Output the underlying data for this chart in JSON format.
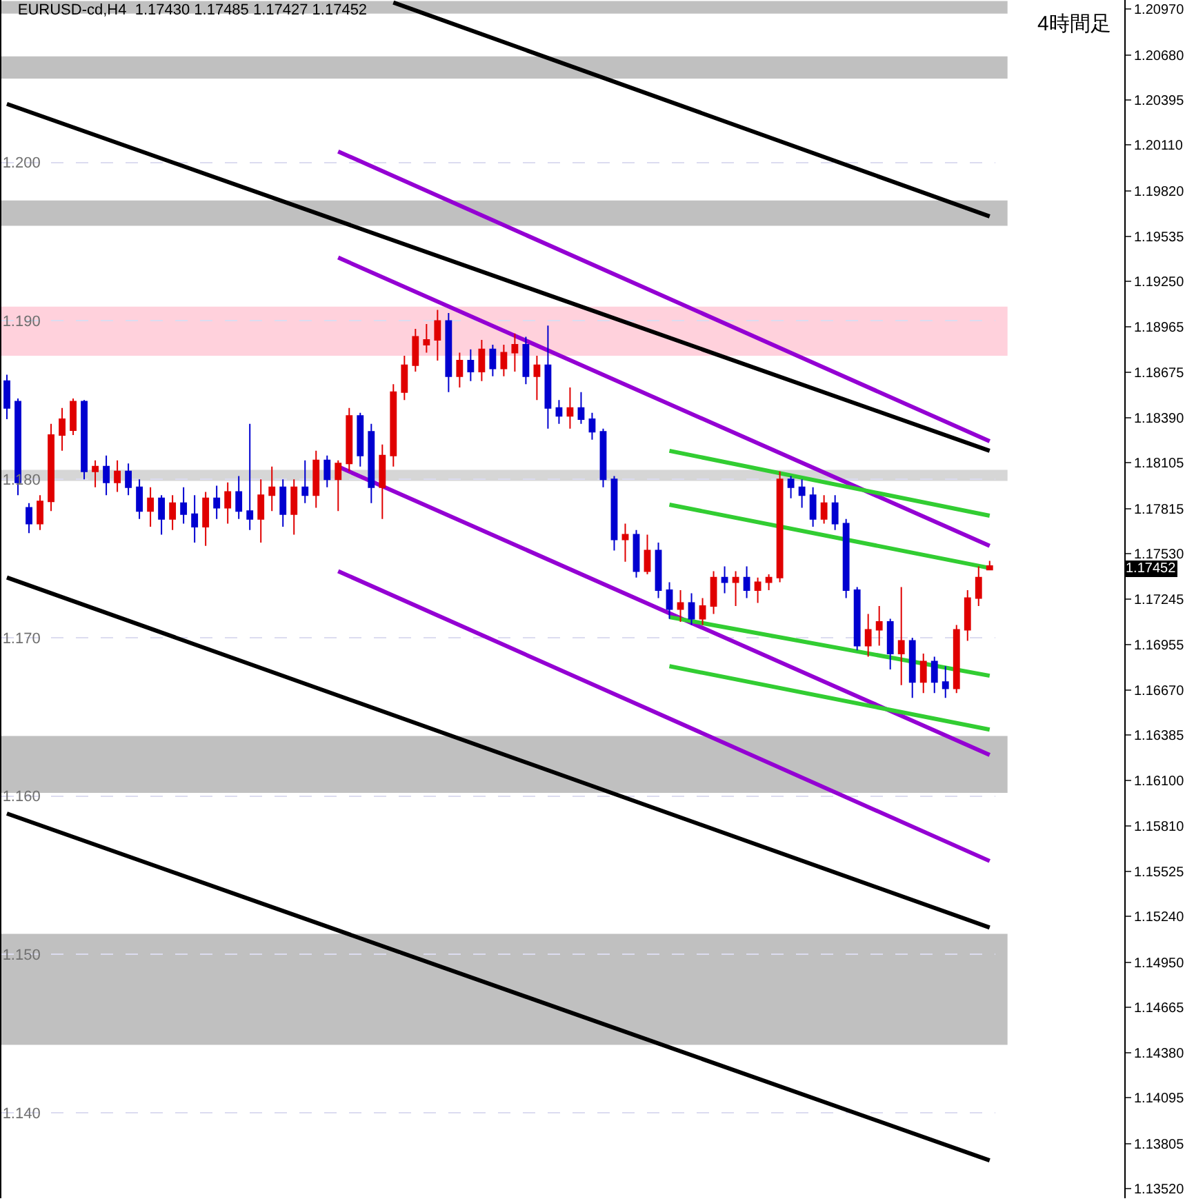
{
  "chart_data": {
    "type": "candlestick",
    "title": "EURUSD-cd,H4  1.17430 1.17485 1.17427 1.17452",
    "categories": [
      null,
      null,
      null,
      null,
      null,
      null,
      null,
      null,
      null,
      null,
      null,
      null,
      null,
      null,
      null,
      null,
      null,
      null,
      null,
      null,
      null,
      null,
      null,
      null,
      null,
      null,
      null,
      null,
      null,
      null,
      null,
      null,
      null,
      null,
      null,
      null,
      null,
      null,
      null,
      null,
      null,
      null,
      null,
      null,
      null,
      null,
      null,
      null,
      null,
      null,
      null,
      null,
      null,
      null,
      null,
      null,
      null,
      null,
      null,
      null,
      null,
      null,
      null,
      null,
      null,
      null,
      null,
      null,
      null,
      null,
      null,
      null,
      null,
      null,
      null,
      null,
      null,
      null,
      null,
      null,
      null,
      null,
      null,
      null,
      null,
      null,
      null,
      null,
      null,
      null
    ],
    "ohlc": [
      [
        1.1862,
        1.1866,
        1.1838,
        1.1845
      ],
      [
        1.1849,
        1.1851,
        1.179,
        1.1798
      ],
      [
        1.1782,
        1.1785,
        1.1766,
        1.1772
      ],
      [
        1.1772,
        1.179,
        1.1768,
        1.1786
      ],
      [
        1.1786,
        1.1835,
        1.178,
        1.1828
      ],
      [
        1.1828,
        1.1845,
        1.1818,
        1.1838
      ],
      [
        1.1831,
        1.1851,
        1.1828,
        1.1849
      ],
      [
        1.1849,
        1.185,
        1.18,
        1.1805
      ],
      [
        1.1805,
        1.1812,
        1.1795,
        1.1808
      ],
      [
        1.1808,
        1.1815,
        1.179,
        1.1798
      ],
      [
        1.1798,
        1.1812,
        1.1792,
        1.1805
      ],
      [
        1.1805,
        1.181,
        1.179,
        1.1795
      ],
      [
        1.1795,
        1.18,
        1.1775,
        1.178
      ],
      [
        1.178,
        1.1795,
        1.177,
        1.1788
      ],
      [
        1.1788,
        1.179,
        1.1765,
        1.1775
      ],
      [
        1.1775,
        1.179,
        1.1768,
        1.1785
      ],
      [
        1.1785,
        1.1795,
        1.1772,
        1.1778
      ],
      [
        1.1778,
        1.179,
        1.176,
        1.177
      ],
      [
        1.177,
        1.1792,
        1.1758,
        1.1788
      ],
      [
        1.1788,
        1.1796,
        1.1775,
        1.1782
      ],
      [
        1.1782,
        1.1798,
        1.1772,
        1.1792
      ],
      [
        1.1792,
        1.1802,
        1.1775,
        1.178
      ],
      [
        1.178,
        1.1835,
        1.1768,
        1.1775
      ],
      [
        1.1775,
        1.18,
        1.176,
        1.179
      ],
      [
        1.179,
        1.1808,
        1.178,
        1.1795
      ],
      [
        1.1795,
        1.18,
        1.177,
        1.1778
      ],
      [
        1.1778,
        1.18,
        1.1765,
        1.1795
      ],
      [
        1.1795,
        1.1812,
        1.1785,
        1.179
      ],
      [
        1.179,
        1.1818,
        1.1782,
        1.1812
      ],
      [
        1.1812,
        1.1815,
        1.1795,
        1.18
      ],
      [
        1.18,
        1.1812,
        1.178,
        1.181
      ],
      [
        1.181,
        1.1845,
        1.1805,
        1.184
      ],
      [
        1.184,
        1.1842,
        1.1808,
        1.1815
      ],
      [
        1.183,
        1.1835,
        1.1785,
        1.1795
      ],
      [
        1.1795,
        1.1822,
        1.1775,
        1.1815
      ],
      [
        1.1815,
        1.186,
        1.1808,
        1.1855
      ],
      [
        1.1855,
        1.1878,
        1.185,
        1.1872
      ],
      [
        1.1872,
        1.1895,
        1.1868,
        1.189
      ],
      [
        1.1885,
        1.1898,
        1.188,
        1.1888
      ],
      [
        1.1888,
        1.1907,
        1.1875,
        1.19
      ],
      [
        1.19,
        1.1905,
        1.1855,
        1.1865
      ],
      [
        1.1865,
        1.188,
        1.1858,
        1.1875
      ],
      [
        1.1875,
        1.1882,
        1.1862,
        1.1868
      ],
      [
        1.1868,
        1.1888,
        1.1862,
        1.1882
      ],
      [
        1.1882,
        1.1885,
        1.1865,
        1.187
      ],
      [
        1.187,
        1.1885,
        1.1865,
        1.188
      ],
      [
        1.188,
        1.1892,
        1.1868,
        1.1885
      ],
      [
        1.1885,
        1.189,
        1.186,
        1.1865
      ],
      [
        1.1865,
        1.1878,
        1.185,
        1.1872
      ],
      [
        1.1872,
        1.1897,
        1.1832,
        1.1845
      ],
      [
        1.1845,
        1.185,
        1.1835,
        1.184
      ],
      [
        1.184,
        1.1858,
        1.1832,
        1.1845
      ],
      [
        1.1845,
        1.1855,
        1.1835,
        1.1838
      ],
      [
        1.1838,
        1.1842,
        1.1825,
        1.183
      ],
      [
        1.183,
        1.1832,
        1.1795,
        1.18
      ],
      [
        1.18,
        1.1802,
        1.1755,
        1.1762
      ],
      [
        1.1762,
        1.1772,
        1.1748,
        1.1765
      ],
      [
        1.1765,
        1.1768,
        1.1738,
        1.1742
      ],
      [
        1.1742,
        1.1765,
        1.174,
        1.1755
      ],
      [
        1.1755,
        1.176,
        1.1725,
        1.173
      ],
      [
        1.173,
        1.1735,
        1.1712,
        1.1718
      ],
      [
        1.1718,
        1.173,
        1.171,
        1.1722
      ],
      [
        1.1722,
        1.1728,
        1.1708,
        1.1712
      ],
      [
        1.1712,
        1.1725,
        1.1708,
        1.172
      ],
      [
        1.172,
        1.1742,
        1.1715,
        1.1738
      ],
      [
        1.1738,
        1.1745,
        1.1728,
        1.1735
      ],
      [
        1.1735,
        1.1742,
        1.172,
        1.1738
      ],
      [
        1.1738,
        1.1745,
        1.1725,
        1.173
      ],
      [
        1.173,
        1.1738,
        1.1722,
        1.1735
      ],
      [
        1.1735,
        1.174,
        1.173,
        1.1738
      ],
      [
        1.1738,
        1.1805,
        1.1735,
        1.18
      ],
      [
        1.18,
        1.1802,
        1.1788,
        1.1795
      ],
      [
        1.1795,
        1.18,
        1.1782,
        1.179
      ],
      [
        1.179,
        1.1795,
        1.177,
        1.1775
      ],
      [
        1.1775,
        1.179,
        1.1772,
        1.1785
      ],
      [
        1.1785,
        1.179,
        1.1768,
        1.1772
      ],
      [
        1.1772,
        1.1775,
        1.1725,
        1.173
      ],
      [
        1.173,
        1.1732,
        1.1692,
        1.1695
      ],
      [
        1.1695,
        1.1715,
        1.1688,
        1.1705
      ],
      [
        1.1705,
        1.172,
        1.1695,
        1.171
      ],
      [
        1.171,
        1.1712,
        1.168,
        1.169
      ],
      [
        1.169,
        1.1732,
        1.167,
        1.1698
      ],
      [
        1.1698,
        1.17,
        1.1662,
        1.1672
      ],
      [
        1.1672,
        1.169,
        1.1665,
        1.1685
      ],
      [
        1.1685,
        1.1688,
        1.1665,
        1.1672
      ],
      [
        1.1672,
        1.1682,
        1.1662,
        1.1668
      ],
      [
        1.1668,
        1.1708,
        1.1665,
        1.1705
      ],
      [
        1.1705,
        1.173,
        1.1698,
        1.1725
      ],
      [
        1.1725,
        1.1745,
        1.172,
        1.1738
      ],
      [
        1.1743,
        1.17485,
        1.17427,
        1.17452
      ]
    ],
    "colors": [
      "#0000d0",
      "#0000d0",
      "#0000d0",
      "#e00000",
      "#e00000",
      "#e00000",
      "#e00000",
      "#0000d0",
      "#e00000",
      "#0000d0",
      "#e00000",
      "#0000d0",
      "#0000d0",
      "#e00000",
      "#0000d0",
      "#e00000",
      "#0000d0",
      "#0000d0",
      "#e00000",
      "#0000d0",
      "#e00000",
      "#0000d0",
      "#0000d0",
      "#e00000",
      "#e00000",
      "#0000d0",
      "#e00000",
      "#0000d0",
      "#e00000",
      "#0000d0",
      "#e00000",
      "#e00000",
      "#0000d0",
      "#0000d0",
      "#e00000",
      "#e00000",
      "#e00000",
      "#e00000",
      "#e00000",
      "#e00000",
      "#0000d0",
      "#e00000",
      "#0000d0",
      "#e00000",
      "#0000d0",
      "#e00000",
      "#e00000",
      "#0000d0",
      "#e00000",
      "#0000d0",
      "#0000d0",
      "#e00000",
      "#0000d0",
      "#0000d0",
      "#0000d0",
      "#0000d0",
      "#e00000",
      "#0000d0",
      "#e00000",
      "#0000d0",
      "#0000d0",
      "#e00000",
      "#0000d0",
      "#e00000",
      "#e00000",
      "#0000d0",
      "#e00000",
      "#0000d0",
      "#e00000",
      "#e00000",
      "#e00000",
      "#0000d0",
      "#0000d0",
      "#0000d0",
      "#e00000",
      "#0000d0",
      "#0000d0",
      "#0000d0",
      "#e00000",
      "#e00000",
      "#0000d0",
      "#e00000",
      "#0000d0",
      "#e00000",
      "#0000d0",
      "#0000d0",
      "#e00000",
      "#e00000",
      "#e00000",
      "#e00000"
    ],
    "series": [
      {
        "type": "line",
        "color": "#000000",
        "values": [
          null,
          null,
          null,
          null,
          null,
          null,
          null,
          null,
          null,
          null,
          null,
          null,
          null,
          null,
          null,
          null,
          null,
          null,
          null,
          null,
          null,
          null,
          null,
          null,
          null,
          null,
          null,
          null,
          null,
          null,
          null,
          null,
          null,
          null,
          null,
          1.2101,
          null,
          null,
          null,
          null,
          null,
          null,
          null,
          null,
          null,
          null,
          null,
          null,
          null,
          null,
          null,
          null,
          null,
          null,
          null,
          null,
          null,
          null,
          null,
          null,
          null,
          null,
          null,
          null,
          null,
          null,
          null,
          null,
          null,
          null,
          null,
          null,
          null,
          null,
          null,
          null,
          null,
          null,
          null,
          null,
          null,
          null,
          null,
          null,
          null,
          null,
          null,
          null,
          null,
          1.1966
        ]
      },
      {
        "type": "line",
        "color": "#000000",
        "values": [
          1.2037,
          null,
          null,
          null,
          null,
          null,
          null,
          null,
          null,
          null,
          null,
          null,
          null,
          null,
          null,
          null,
          null,
          null,
          null,
          null,
          null,
          null,
          null,
          null,
          null,
          null,
          null,
          null,
          null,
          null,
          null,
          null,
          null,
          null,
          null,
          null,
          null,
          null,
          null,
          null,
          null,
          null,
          null,
          null,
          null,
          null,
          null,
          null,
          null,
          null,
          null,
          null,
          null,
          null,
          null,
          null,
          null,
          null,
          null,
          null,
          null,
          null,
          null,
          null,
          null,
          null,
          null,
          null,
          null,
          null,
          null,
          null,
          null,
          null,
          null,
          null,
          null,
          null,
          null,
          null,
          null,
          null,
          null,
          null,
          null,
          null,
          null,
          null,
          null,
          1.1818
        ]
      },
      {
        "type": "line",
        "color": "#000000",
        "values": [
          1.1738,
          null,
          null,
          null,
          null,
          null,
          null,
          null,
          null,
          null,
          null,
          null,
          null,
          null,
          null,
          null,
          null,
          null,
          null,
          null,
          null,
          null,
          null,
          null,
          null,
          null,
          null,
          null,
          null,
          null,
          null,
          null,
          null,
          null,
          null,
          null,
          null,
          null,
          null,
          null,
          null,
          null,
          null,
          null,
          null,
          null,
          null,
          null,
          null,
          null,
          null,
          null,
          null,
          null,
          null,
          null,
          null,
          null,
          null,
          null,
          null,
          null,
          null,
          null,
          null,
          null,
          null,
          null,
          null,
          null,
          null,
          null,
          null,
          null,
          null,
          null,
          null,
          null,
          null,
          null,
          null,
          null,
          null,
          null,
          null,
          null,
          null,
          null,
          null,
          1.1517
        ]
      },
      {
        "type": "line",
        "color": "#000000",
        "values": [
          1.1589,
          null,
          null,
          null,
          null,
          null,
          null,
          null,
          null,
          null,
          null,
          null,
          null,
          null,
          null,
          null,
          null,
          null,
          null,
          null,
          null,
          null,
          null,
          null,
          null,
          null,
          null,
          null,
          null,
          null,
          null,
          null,
          null,
          null,
          null,
          null,
          null,
          null,
          null,
          null,
          null,
          null,
          null,
          null,
          null,
          null,
          null,
          null,
          null,
          null,
          null,
          null,
          null,
          null,
          null,
          null,
          null,
          null,
          null,
          null,
          null,
          null,
          null,
          null,
          null,
          null,
          null,
          null,
          null,
          null,
          null,
          null,
          null,
          null,
          null,
          null,
          null,
          null,
          null,
          null,
          null,
          null,
          null,
          null,
          null,
          null,
          null,
          null,
          null,
          1.137
        ]
      },
      {
        "type": "line",
        "color": "#9400d3",
        "values": [
          null,
          null,
          null,
          null,
          null,
          null,
          null,
          null,
          null,
          null,
          null,
          null,
          null,
          null,
          null,
          null,
          null,
          null,
          null,
          null,
          null,
          null,
          null,
          null,
          null,
          null,
          null,
          null,
          null,
          null,
          1.2007,
          null,
          null,
          null,
          null,
          null,
          null,
          null,
          null,
          null,
          null,
          null,
          null,
          null,
          null,
          null,
          null,
          null,
          null,
          null,
          null,
          null,
          null,
          null,
          null,
          null,
          null,
          null,
          null,
          null,
          null,
          null,
          null,
          null,
          null,
          null,
          null,
          null,
          null,
          null,
          null,
          null,
          null,
          null,
          null,
          null,
          null,
          null,
          null,
          null,
          null,
          null,
          null,
          null,
          null,
          null,
          null,
          null,
          null,
          1.1824
        ]
      },
      {
        "type": "line",
        "color": "#9400d3",
        "values": [
          null,
          null,
          null,
          null,
          null,
          null,
          null,
          null,
          null,
          null,
          null,
          null,
          null,
          null,
          null,
          null,
          null,
          null,
          null,
          null,
          null,
          null,
          null,
          null,
          null,
          null,
          null,
          null,
          null,
          null,
          1.194,
          null,
          null,
          null,
          null,
          null,
          null,
          null,
          null,
          null,
          null,
          null,
          null,
          null,
          null,
          null,
          null,
          null,
          null,
          null,
          null,
          null,
          null,
          null,
          null,
          null,
          null,
          null,
          null,
          null,
          null,
          null,
          null,
          null,
          null,
          null,
          null,
          null,
          null,
          null,
          null,
          null,
          null,
          null,
          null,
          null,
          null,
          null,
          null,
          null,
          null,
          null,
          null,
          null,
          null,
          null,
          null,
          null,
          null,
          1.1758
        ]
      },
      {
        "type": "line",
        "color": "#9400d3",
        "values": [
          null,
          null,
          null,
          null,
          null,
          null,
          null,
          null,
          null,
          null,
          null,
          null,
          null,
          null,
          null,
          null,
          null,
          null,
          null,
          null,
          null,
          null,
          null,
          null,
          null,
          null,
          null,
          null,
          null,
          null,
          1.1808,
          null,
          null,
          null,
          null,
          null,
          null,
          null,
          null,
          null,
          null,
          null,
          null,
          null,
          null,
          null,
          null,
          null,
          null,
          null,
          null,
          null,
          null,
          null,
          null,
          null,
          null,
          null,
          null,
          null,
          null,
          null,
          null,
          null,
          null,
          null,
          null,
          null,
          null,
          null,
          null,
          null,
          null,
          null,
          null,
          null,
          null,
          null,
          null,
          null,
          null,
          null,
          null,
          null,
          null,
          null,
          null,
          null,
          null,
          1.1626
        ]
      },
      {
        "type": "line",
        "color": "#9400d3",
        "values": [
          null,
          null,
          null,
          null,
          null,
          null,
          null,
          null,
          null,
          null,
          null,
          null,
          null,
          null,
          null,
          null,
          null,
          null,
          null,
          null,
          null,
          null,
          null,
          null,
          null,
          null,
          null,
          null,
          null,
          null,
          1.1742,
          null,
          null,
          null,
          null,
          null,
          null,
          null,
          null,
          null,
          null,
          null,
          null,
          null,
          null,
          null,
          null,
          null,
          null,
          null,
          null,
          null,
          null,
          null,
          null,
          null,
          null,
          null,
          null,
          null,
          null,
          null,
          null,
          null,
          null,
          null,
          null,
          null,
          null,
          null,
          null,
          null,
          null,
          null,
          null,
          null,
          null,
          null,
          null,
          null,
          null,
          null,
          null,
          null,
          null,
          null,
          null,
          null,
          null,
          1.1559
        ]
      },
      {
        "type": "line",
        "color": "#32cd32",
        "values": [
          null,
          null,
          null,
          null,
          null,
          null,
          null,
          null,
          null,
          null,
          null,
          null,
          null,
          null,
          null,
          null,
          null,
          null,
          null,
          null,
          null,
          null,
          null,
          null,
          null,
          null,
          null,
          null,
          null,
          null,
          null,
          null,
          null,
          null,
          null,
          null,
          null,
          null,
          null,
          null,
          null,
          null,
          null,
          null,
          null,
          null,
          null,
          null,
          null,
          null,
          null,
          null,
          null,
          null,
          null,
          null,
          null,
          null,
          null,
          null,
          1.1818,
          null,
          null,
          null,
          null,
          null,
          null,
          null,
          null,
          null,
          null,
          null,
          null,
          null,
          null,
          null,
          null,
          null,
          null,
          null,
          null,
          null,
          null,
          null,
          null,
          null,
          null,
          null,
          null,
          1.1777
        ]
      },
      {
        "type": "line",
        "color": "#32cd32",
        "values": [
          null,
          null,
          null,
          null,
          null,
          null,
          null,
          null,
          null,
          null,
          null,
          null,
          null,
          null,
          null,
          null,
          null,
          null,
          null,
          null,
          null,
          null,
          null,
          null,
          null,
          null,
          null,
          null,
          null,
          null,
          null,
          null,
          null,
          null,
          null,
          null,
          null,
          null,
          null,
          null,
          null,
          null,
          null,
          null,
          null,
          null,
          null,
          null,
          null,
          null,
          null,
          null,
          null,
          null,
          null,
          null,
          null,
          null,
          null,
          null,
          1.1784,
          null,
          null,
          null,
          null,
          null,
          null,
          null,
          null,
          null,
          null,
          null,
          null,
          null,
          null,
          null,
          null,
          null,
          null,
          null,
          null,
          null,
          null,
          null,
          null,
          null,
          null,
          null,
          null,
          1.1744
        ]
      },
      {
        "type": "line",
        "color": "#32cd32",
        "values": [
          null,
          null,
          null,
          null,
          null,
          null,
          null,
          null,
          null,
          null,
          null,
          null,
          null,
          null,
          null,
          null,
          null,
          null,
          null,
          null,
          null,
          null,
          null,
          null,
          null,
          null,
          null,
          null,
          null,
          null,
          null,
          null,
          null,
          null,
          null,
          null,
          null,
          null,
          null,
          null,
          null,
          null,
          null,
          null,
          null,
          null,
          null,
          null,
          null,
          null,
          null,
          null,
          null,
          null,
          null,
          null,
          null,
          null,
          null,
          null,
          1.1713,
          null,
          null,
          null,
          null,
          null,
          null,
          null,
          null,
          null,
          null,
          null,
          null,
          null,
          null,
          null,
          null,
          null,
          null,
          null,
          null,
          null,
          null,
          null,
          null,
          null,
          null,
          null,
          null,
          1.1676
        ]
      },
      {
        "type": "line",
        "color": "#32cd32",
        "values": [
          null,
          null,
          null,
          null,
          null,
          null,
          null,
          null,
          null,
          null,
          null,
          null,
          null,
          null,
          null,
          null,
          null,
          null,
          null,
          null,
          null,
          null,
          null,
          null,
          null,
          null,
          null,
          null,
          null,
          null,
          null,
          null,
          null,
          null,
          null,
          null,
          null,
          null,
          null,
          null,
          null,
          null,
          null,
          null,
          null,
          null,
          null,
          null,
          null,
          null,
          null,
          null,
          null,
          null,
          null,
          null,
          null,
          null,
          null,
          null,
          1.1682,
          null,
          null,
          null,
          null,
          null,
          null,
          null,
          null,
          null,
          null,
          null,
          null,
          null,
          null,
          null,
          null,
          null,
          null,
          null,
          null,
          null,
          null,
          null,
          null,
          null,
          null,
          null,
          null,
          1.1642
        ]
      }
    ],
    "bands": [
      {
        "axis": "y",
        "from": 1.2094,
        "to": 1.2102,
        "color": "#c0c0c0"
      },
      {
        "axis": "y",
        "from": 1.2053,
        "to": 1.2067,
        "color": "#c0c0c0"
      },
      {
        "axis": "y",
        "from": 1.196,
        "to": 1.1976,
        "color": "#c0c0c0"
      },
      {
        "axis": "y",
        "from": 1.1878,
        "to": 1.1909,
        "color": "#ffd1dc"
      },
      {
        "axis": "y",
        "from": 1.1799,
        "to": 1.1806,
        "color": "#d6d6d6"
      },
      {
        "axis": "y",
        "from": 1.1602,
        "to": 1.1638,
        "color": "#c0c0c0"
      },
      {
        "axis": "y",
        "from": 1.1443,
        "to": 1.1513,
        "color": "#c0c0c0"
      }
    ],
    "annotations": [
      "4時間足",
      "1.17452"
    ],
    "ylim": [
      1.13461,
      1.21026
    ],
    "yticks": [
      {
        "value": 1.2,
        "label": "1.200"
      },
      {
        "value": 1.19,
        "label": "1.190"
      },
      {
        "value": 1.18,
        "label": "1.180"
      },
      {
        "value": 1.17,
        "label": "1.170"
      },
      {
        "value": 1.16,
        "label": "1.160"
      },
      {
        "value": 1.15,
        "label": "1.150"
      },
      {
        "value": 1.14,
        "label": "1.140"
      }
    ],
    "y2lim": [
      1.13461,
      1.21026
    ],
    "y2ticks": [
      {
        "value": 1.2097,
        "label": "1.20970"
      },
      {
        "value": 1.2068,
        "label": "1.20680"
      },
      {
        "value": 1.20395,
        "label": "1.20395"
      },
      {
        "value": 1.2011,
        "label": "1.20110"
      },
      {
        "value": 1.1982,
        "label": "1.19820"
      },
      {
        "value": 1.19535,
        "label": "1.19535"
      },
      {
        "value": 1.1925,
        "label": "1.19250"
      },
      {
        "value": 1.18965,
        "label": "1.18965"
      },
      {
        "value": 1.18675,
        "label": "1.18675"
      },
      {
        "value": 1.1839,
        "label": "1.18390"
      },
      {
        "value": 1.18105,
        "label": "1.18105"
      },
      {
        "value": 1.17815,
        "label": "1.17815"
      },
      {
        "value": 1.1753,
        "label": "1.17530"
      },
      {
        "value": 1.17245,
        "label": "1.17245"
      },
      {
        "value": 1.16955,
        "label": "1.16955"
      },
      {
        "value": 1.1667,
        "label": "1.16670"
      },
      {
        "value": 1.16385,
        "label": "1.16385"
      },
      {
        "value": 1.161,
        "label": "1.16100"
      },
      {
        "value": 1.1581,
        "label": "1.15810"
      },
      {
        "value": 1.15525,
        "label": "1.15525"
      },
      {
        "value": 1.1524,
        "label": "1.15240"
      },
      {
        "value": 1.1495,
        "label": "1.14950"
      },
      {
        "value": 1.14665,
        "label": "1.14665"
      },
      {
        "value": 1.1438,
        "label": "1.14380"
      },
      {
        "value": 1.14095,
        "label": "1.14095"
      },
      {
        "value": 1.13805,
        "label": "1.13805"
      },
      {
        "value": 1.1352,
        "label": "1.13520"
      }
    ],
    "tick_labels": "y",
    "grid": "y",
    "line_style": "solid",
    "marker": "none"
  }
}
